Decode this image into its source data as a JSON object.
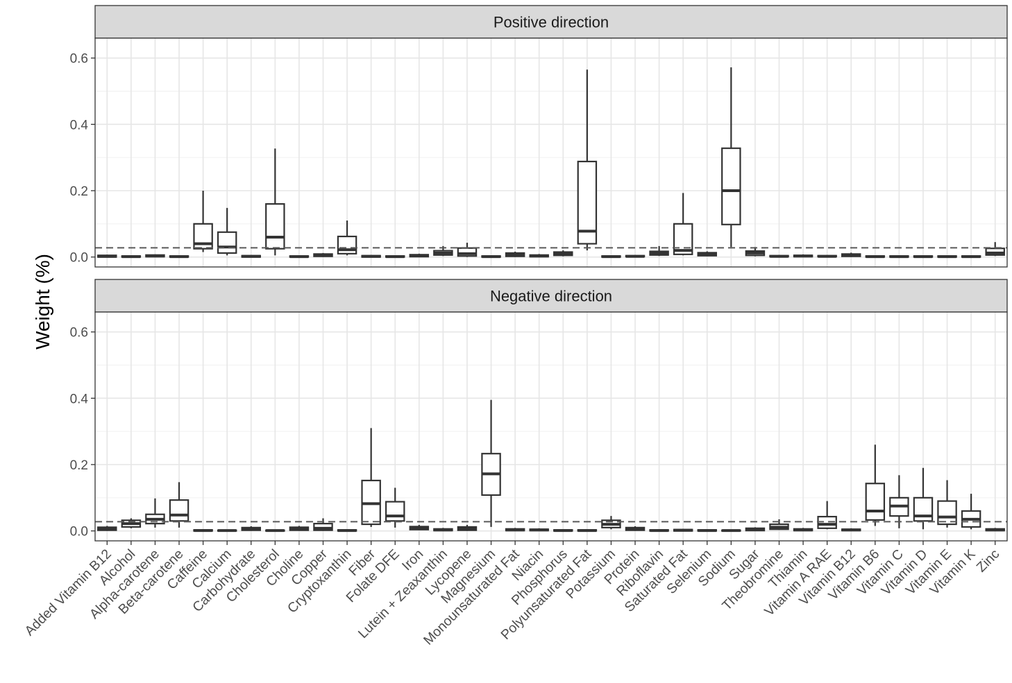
{
  "chart_data": {
    "type": "boxplot",
    "ylabel": "Weight (%)",
    "xlabel": "",
    "ylim": [
      -0.03,
      0.66
    ],
    "yticks": [
      0.0,
      0.2,
      0.4,
      0.6
    ],
    "ytick_labels": [
      "0.0",
      "0.2",
      "0.4",
      "0.6"
    ],
    "grid": true,
    "reference_line": {
      "y": 0.0278,
      "style": "dashed"
    },
    "categories": [
      "Added Vitamin B12",
      "Alcohol",
      "Alpha-carotene",
      "Beta-carotene",
      "Caffeine",
      "Calcium",
      "Carbohydrate",
      "Cholesterol",
      "Choline",
      "Copper",
      "Cryptoxanthin",
      "Fiber",
      "Folate DFE",
      "Iron",
      "Lutein + Zeaxanthin",
      "Lycopene",
      "Magnesium",
      "Monounsaturated Fat",
      "Niacin",
      "Phosphorus",
      "Polyunsaturated Fat",
      "Potassium",
      "Protein",
      "Riboflavin",
      "Saturated Fat",
      "Selenium",
      "Sodium",
      "Sugar",
      "Theobromine",
      "Thiamin",
      "Vitamin A RAE",
      "Vitamin B12",
      "Vitamin B6",
      "Vitamin C",
      "Vitamin D",
      "Vitamin E",
      "Vitamin K",
      "Zinc"
    ],
    "panels": [
      {
        "title": "Positive direction",
        "boxes": [
          [
            0,
            0,
            0.002,
            0.005,
            0.007
          ],
          [
            0,
            0,
            0.001,
            0.003,
            0.005
          ],
          [
            0,
            0.001,
            0.003,
            0.006,
            0.008
          ],
          [
            0,
            0,
            0.001,
            0.003,
            0.005
          ],
          [
            0.015,
            0.025,
            0.04,
            0.1,
            0.2
          ],
          [
            0.005,
            0.012,
            0.03,
            0.075,
            0.148
          ],
          [
            0,
            0,
            0.002,
            0.004,
            0.006
          ],
          [
            0.005,
            0.025,
            0.06,
            0.16,
            0.327
          ],
          [
            0,
            0,
            0.001,
            0.003,
            0.005
          ],
          [
            0,
            0.002,
            0.005,
            0.009,
            0.012
          ],
          [
            0.005,
            0.01,
            0.022,
            0.062,
            0.11
          ],
          [
            0,
            0,
            0.002,
            0.004,
            0.006
          ],
          [
            0,
            0,
            0.001,
            0.003,
            0.005
          ],
          [
            0,
            0.001,
            0.004,
            0.007,
            0.01
          ],
          [
            0.003,
            0.006,
            0.012,
            0.019,
            0.033
          ],
          [
            0,
            0.003,
            0.01,
            0.027,
            0.043
          ],
          [
            0,
            0,
            0.001,
            0.003,
            0.005
          ],
          [
            0,
            0.002,
            0.006,
            0.012,
            0.016
          ],
          [
            0,
            0.001,
            0.003,
            0.006,
            0.009
          ],
          [
            0.002,
            0.005,
            0.009,
            0.015,
            0.02
          ],
          [
            0.02,
            0.04,
            0.078,
            0.288,
            0.565
          ],
          [
            0,
            0,
            0.001,
            0.003,
            0.005
          ],
          [
            0,
            0.001,
            0.002,
            0.004,
            0.006
          ],
          [
            0.003,
            0.006,
            0.011,
            0.017,
            0.033
          ],
          [
            0.005,
            0.008,
            0.02,
            0.1,
            0.193
          ],
          [
            0.002,
            0.004,
            0.008,
            0.013,
            0.017
          ],
          [
            0.03,
            0.098,
            0.2,
            0.328,
            0.572
          ],
          [
            0.002,
            0.005,
            0.012,
            0.018,
            0.03
          ],
          [
            0,
            0.001,
            0.002,
            0.004,
            0.006
          ],
          [
            0,
            0.001,
            0.003,
            0.005,
            0.008
          ],
          [
            0,
            0.001,
            0.002,
            0.004,
            0.006
          ],
          [
            0,
            0.002,
            0.005,
            0.009,
            0.013
          ],
          [
            0,
            0,
            0.001,
            0.003,
            0.005
          ],
          [
            0,
            0,
            0.001,
            0.003,
            0.005
          ],
          [
            0,
            0,
            0.001,
            0.003,
            0.005
          ],
          [
            0,
            0,
            0.001,
            0.003,
            0.005
          ],
          [
            0,
            0,
            0.001,
            0.003,
            0.005
          ],
          [
            0.003,
            0.006,
            0.012,
            0.026,
            0.045
          ]
        ]
      },
      {
        "title": "Negative direction",
        "boxes": [
          [
            0,
            0.002,
            0.006,
            0.011,
            0.015
          ],
          [
            0.008,
            0.012,
            0.022,
            0.032,
            0.038
          ],
          [
            0.01,
            0.022,
            0.035,
            0.05,
            0.098
          ],
          [
            0.01,
            0.03,
            0.048,
            0.093,
            0.147
          ],
          [
            0,
            0,
            0.001,
            0.003,
            0.005
          ],
          [
            0,
            0,
            0.001,
            0.002,
            0.004
          ],
          [
            0,
            0.002,
            0.005,
            0.01,
            0.014
          ],
          [
            0,
            0,
            0.001,
            0.002,
            0.004
          ],
          [
            0,
            0.002,
            0.006,
            0.011,
            0.015
          ],
          [
            0,
            0.002,
            0.008,
            0.022,
            0.038
          ],
          [
            0,
            0,
            0.001,
            0.003,
            0.005
          ],
          [
            0.012,
            0.02,
            0.082,
            0.152,
            0.31
          ],
          [
            0.01,
            0.03,
            0.045,
            0.088,
            0.13
          ],
          [
            0.002,
            0.004,
            0.008,
            0.013,
            0.018
          ],
          [
            0,
            0.001,
            0.003,
            0.006,
            0.009
          ],
          [
            0,
            0.002,
            0.006,
            0.012,
            0.018
          ],
          [
            0.012,
            0.108,
            0.172,
            0.233,
            0.395
          ],
          [
            0,
            0.001,
            0.003,
            0.006,
            0.009
          ],
          [
            0,
            0.001,
            0.003,
            0.005,
            0.008
          ],
          [
            0,
            0,
            0.001,
            0.003,
            0.005
          ],
          [
            0,
            0,
            0.001,
            0.003,
            0.005
          ],
          [
            0.005,
            0.01,
            0.02,
            0.032,
            0.045
          ],
          [
            0,
            0.002,
            0.005,
            0.01,
            0.014
          ],
          [
            0,
            0,
            0.001,
            0.003,
            0.005
          ],
          [
            0,
            0,
            0.002,
            0.004,
            0.006
          ],
          [
            0,
            0,
            0.001,
            0.003,
            0.005
          ],
          [
            0,
            0,
            0.001,
            0.002,
            0.004
          ],
          [
            0,
            0.001,
            0.004,
            0.008,
            0.011
          ],
          [
            0.003,
            0.005,
            0.011,
            0.02,
            0.035
          ],
          [
            0,
            0.001,
            0.003,
            0.006,
            0.009
          ],
          [
            0.005,
            0.008,
            0.02,
            0.043,
            0.09
          ],
          [
            0,
            0.001,
            0.003,
            0.005,
            0.008
          ],
          [
            0.015,
            0.033,
            0.06,
            0.143,
            0.26
          ],
          [
            0.008,
            0.045,
            0.075,
            0.1,
            0.168
          ],
          [
            0.005,
            0.03,
            0.045,
            0.1,
            0.19
          ],
          [
            0.01,
            0.02,
            0.042,
            0.09,
            0.153
          ],
          [
            0.005,
            0.012,
            0.035,
            0.06,
            0.112
          ],
          [
            0,
            0.001,
            0.003,
            0.006,
            0.009
          ]
        ]
      }
    ]
  }
}
